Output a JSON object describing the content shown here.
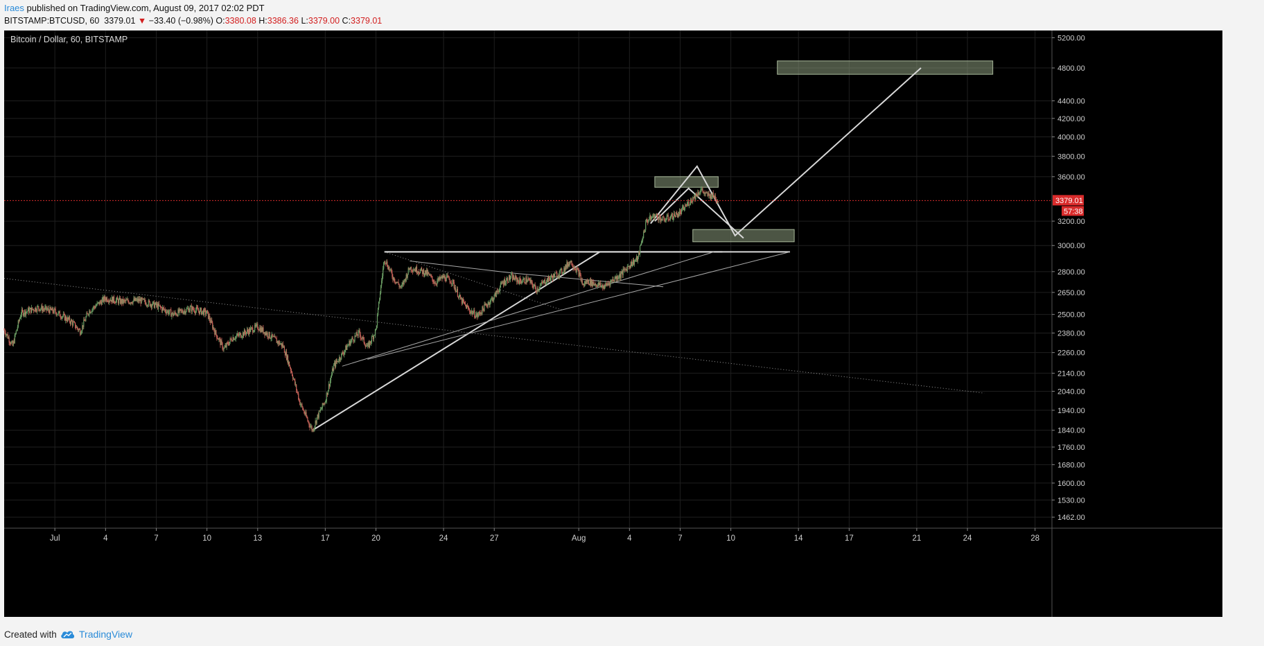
{
  "header": {
    "user": "Iraes",
    "published_text": " published on TradingView.com, August 09, 2017 02:02 PDT",
    "symbol": "BITSTAMP:BTCUSD, 60",
    "last_price": "3379.01",
    "change_arrow": "▼",
    "change": "−33.40 (−0.98%)",
    "open_label": "O:",
    "open": "3380.08",
    "high_label": "H:",
    "high": "3386.36",
    "low_label": "L:",
    "low": "3379.00",
    "close_label": "C:",
    "close": "3379.01"
  },
  "footer": {
    "created_with": "Created with",
    "brand": "TradingView"
  },
  "colors": {
    "background": "#000000",
    "grid": "#1f1f1f",
    "up_candle": "#6b9e64",
    "down_candle": "#c9645a",
    "price_line": "#d92b2b",
    "drawing": "#d8d8d8",
    "zone_fill": "#8a9a7c",
    "accent": "#2a8bd8"
  },
  "chart_data": {
    "type": "candlestick",
    "title": "Bitcoin / Dollar, 60, BITSTAMP",
    "scale": "log",
    "y_range": [
      1420,
      5300
    ],
    "x_range": [
      "2017-06-28",
      "2017-08-29"
    ],
    "y_ticks": [
      5200,
      4800,
      4400,
      4200,
      4000,
      3800,
      3600,
      3200,
      3000,
      2800,
      2650,
      2500,
      2380,
      2260,
      2140,
      2040,
      1940,
      1840,
      1760,
      1680,
      1600,
      1530,
      1462
    ],
    "y_tick_labels": [
      "5200.00",
      "4800.00",
      "4400.00",
      "4200.00",
      "4000.00",
      "3800.00",
      "3600.00",
      "3200.00",
      "3000.00",
      "2800.00",
      "2650.00",
      "2500.00",
      "2380.00",
      "2260.00",
      "2140.00",
      "2040.00",
      "1940.00",
      "1840.00",
      "1760.00",
      "1680.00",
      "1600.00",
      "1530.00",
      "1462.00"
    ],
    "x_ticks": [
      {
        "date": "2017-07-01",
        "label": "Jul"
      },
      {
        "date": "2017-07-04",
        "label": "4"
      },
      {
        "date": "2017-07-07",
        "label": "7"
      },
      {
        "date": "2017-07-10",
        "label": "10"
      },
      {
        "date": "2017-07-13",
        "label": "13"
      },
      {
        "date": "2017-07-17",
        "label": "17"
      },
      {
        "date": "2017-07-20",
        "label": "20"
      },
      {
        "date": "2017-07-24",
        "label": "24"
      },
      {
        "date": "2017-07-27",
        "label": "27"
      },
      {
        "date": "2017-08-01",
        "label": "Aug"
      },
      {
        "date": "2017-08-04",
        "label": "4"
      },
      {
        "date": "2017-08-07",
        "label": "7"
      },
      {
        "date": "2017-08-10",
        "label": "10"
      },
      {
        "date": "2017-08-14",
        "label": "14"
      },
      {
        "date": "2017-08-17",
        "label": "17"
      },
      {
        "date": "2017-08-21",
        "label": "21"
      },
      {
        "date": "2017-08-24",
        "label": "24"
      },
      {
        "date": "2017-08-28",
        "label": "28"
      }
    ],
    "price_path": [
      [
        "2017-06-28",
        2400
      ],
      [
        "2017-06-28 12:00",
        2300
      ],
      [
        "2017-06-29",
        2510
      ],
      [
        "2017-06-30",
        2545
      ],
      [
        "2017-07-01",
        2520
      ],
      [
        "2017-07-02",
        2450
      ],
      [
        "2017-07-02 12:00",
        2390
      ],
      [
        "2017-07-03",
        2520
      ],
      [
        "2017-07-04",
        2610
      ],
      [
        "2017-07-05",
        2585
      ],
      [
        "2017-07-06",
        2595
      ],
      [
        "2017-07-07",
        2560
      ],
      [
        "2017-07-08",
        2500
      ],
      [
        "2017-07-09",
        2540
      ],
      [
        "2017-07-10",
        2510
      ],
      [
        "2017-07-10 12:00",
        2380
      ],
      [
        "2017-07-11",
        2280
      ],
      [
        "2017-07-11 12:00",
        2350
      ],
      [
        "2017-07-12",
        2370
      ],
      [
        "2017-07-13",
        2420
      ],
      [
        "2017-07-13 12:00",
        2380
      ],
      [
        "2017-07-14",
        2340
      ],
      [
        "2017-07-14 12:00",
        2300
      ],
      [
        "2017-07-15",
        2150
      ],
      [
        "2017-07-15 12:00",
        1980
      ],
      [
        "2017-07-16",
        1880
      ],
      [
        "2017-07-16 06:00",
        1840
      ],
      [
        "2017-07-16 12:00",
        1900
      ],
      [
        "2017-07-17",
        1990
      ],
      [
        "2017-07-17 12:00",
        2180
      ],
      [
        "2017-07-18",
        2250
      ],
      [
        "2017-07-18 12:00",
        2330
      ],
      [
        "2017-07-19",
        2380
      ],
      [
        "2017-07-19 12:00",
        2290
      ],
      [
        "2017-07-20",
        2400
      ],
      [
        "2017-07-20 06:00",
        2650
      ],
      [
        "2017-07-20 12:00",
        2900
      ],
      [
        "2017-07-21",
        2760
      ],
      [
        "2017-07-21 12:00",
        2680
      ],
      [
        "2017-07-22",
        2830
      ],
      [
        "2017-07-23",
        2790
      ],
      [
        "2017-07-23 12:00",
        2720
      ],
      [
        "2017-07-24",
        2760
      ],
      [
        "2017-07-24 12:00",
        2730
      ],
      [
        "2017-07-25",
        2600
      ],
      [
        "2017-07-25 12:00",
        2530
      ],
      [
        "2017-07-26",
        2490
      ],
      [
        "2017-07-26 12:00",
        2560
      ],
      [
        "2017-07-27",
        2620
      ],
      [
        "2017-07-27 12:00",
        2720
      ],
      [
        "2017-07-28",
        2760
      ],
      [
        "2017-07-28 12:00",
        2730
      ],
      [
        "2017-07-29",
        2740
      ],
      [
        "2017-07-29 12:00",
        2670
      ],
      [
        "2017-07-30",
        2730
      ],
      [
        "2017-07-31",
        2800
      ],
      [
        "2017-07-31 12:00",
        2880
      ],
      [
        "2017-08-01",
        2790
      ],
      [
        "2017-08-01 06:00",
        2700
      ],
      [
        "2017-08-01 12:00",
        2730
      ],
      [
        "2017-08-02",
        2710
      ],
      [
        "2017-08-02 12:00",
        2690
      ],
      [
        "2017-08-03",
        2740
      ],
      [
        "2017-08-03 12:00",
        2780
      ],
      [
        "2017-08-04",
        2850
      ],
      [
        "2017-08-04 12:00",
        2900
      ],
      [
        "2017-08-05",
        3200
      ],
      [
        "2017-08-05 12:00",
        3250
      ],
      [
        "2017-08-06",
        3210
      ],
      [
        "2017-08-06 12:00",
        3240
      ],
      [
        "2017-08-07",
        3270
      ],
      [
        "2017-08-07 12:00",
        3360
      ],
      [
        "2017-08-08",
        3440
      ],
      [
        "2017-08-08 06:00",
        3480
      ],
      [
        "2017-08-08 12:00",
        3430
      ],
      [
        "2017-08-09",
        3420
      ],
      [
        "2017-08-09 06:00",
        3379
      ]
    ],
    "last_price_label": "3379.01",
    "countdown_label": "57:38",
    "drawings": [
      {
        "kind": "dotted",
        "points": [
          [
            "2017-06-28",
            2750
          ],
          [
            "2017-08-25",
            2030
          ]
        ]
      },
      {
        "kind": "line",
        "points": [
          [
            "2017-07-16 06:00",
            1840
          ],
          [
            "2017-08-02 06:00",
            2950
          ]
        ]
      },
      {
        "kind": "line",
        "points": [
          [
            "2017-07-20 12:00",
            2950
          ],
          [
            "2017-08-13 12:00",
            2950
          ]
        ]
      },
      {
        "kind": "line",
        "points": [
          [
            "2017-07-20 12:00",
            2950
          ],
          [
            "2017-08-09 12:00",
            2950
          ]
        ]
      },
      {
        "kind": "thin",
        "points": [
          [
            "2017-07-18",
            2180
          ],
          [
            "2017-08-09",
            2950
          ]
        ]
      },
      {
        "kind": "thin",
        "points": [
          [
            "2017-07-19 12:00",
            2220
          ],
          [
            "2017-08-13 12:00",
            2950
          ]
        ]
      },
      {
        "kind": "thin",
        "points": [
          [
            "2017-07-22",
            2880
          ],
          [
            "2017-07-28",
            2790
          ],
          [
            "2017-08-06",
            2690
          ]
        ]
      },
      {
        "kind": "dotted",
        "points": [
          [
            "2017-07-20 12:00",
            2950
          ],
          [
            "2017-07-31",
            2530
          ]
        ]
      },
      {
        "kind": "line",
        "points": [
          [
            "2017-08-05 06:00",
            3180
          ],
          [
            "2017-08-08",
            3700
          ],
          [
            "2017-08-10 06:00",
            3080
          ],
          [
            "2017-08-21 06:00",
            4800
          ]
        ]
      },
      {
        "kind": "line",
        "points": [
          [
            "2017-08-05 12:00",
            3200
          ],
          [
            "2017-08-07 12:00",
            3490
          ],
          [
            "2017-08-10 18:00",
            3060
          ]
        ]
      }
    ],
    "zones": [
      {
        "from": "2017-08-05 12:00",
        "to": "2017-08-09 06:00",
        "low": 3500,
        "high": 3600
      },
      {
        "from": "2017-08-07 18:00",
        "to": "2017-08-13 18:00",
        "low": 3030,
        "high": 3130
      },
      {
        "from": "2017-08-12 18:00",
        "to": "2017-08-25 12:00",
        "low": 4720,
        "high": 4890
      }
    ]
  }
}
